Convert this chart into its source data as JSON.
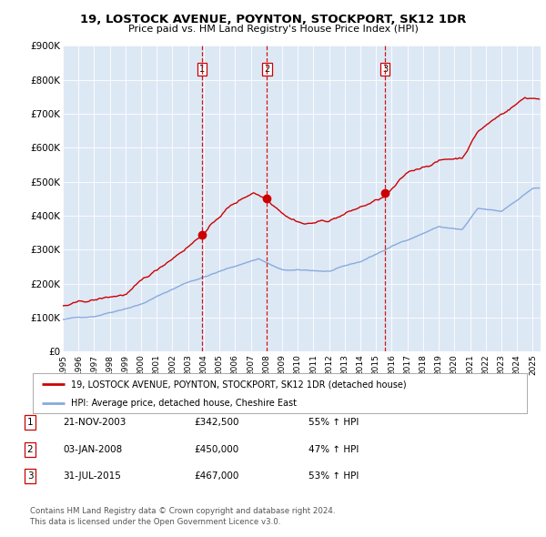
{
  "title": "19, LOSTOCK AVENUE, POYNTON, STOCKPORT, SK12 1DR",
  "subtitle": "Price paid vs. HM Land Registry's House Price Index (HPI)",
  "ylim": [
    0,
    900000
  ],
  "yticks": [
    0,
    100000,
    200000,
    300000,
    400000,
    500000,
    600000,
    700000,
    800000,
    900000
  ],
  "ytick_labels": [
    "£0",
    "£100K",
    "£200K",
    "£300K",
    "£400K",
    "£500K",
    "£600K",
    "£700K",
    "£800K",
    "£900K"
  ],
  "line1_color": "#cc0000",
  "line2_color": "#88aadd",
  "vline_color": "#cc0000",
  "transactions": [
    {
      "date_num": 2003.9,
      "price": 342500,
      "label": "1"
    },
    {
      "date_num": 2008.04,
      "price": 450000,
      "label": "2"
    },
    {
      "date_num": 2015.58,
      "price": 467000,
      "label": "3"
    }
  ],
  "legend_line1": "19, LOSTOCK AVENUE, POYNTON, STOCKPORT, SK12 1DR (detached house)",
  "legend_line2": "HPI: Average price, detached house, Cheshire East",
  "table_rows": [
    {
      "num": "1",
      "date": "21-NOV-2003",
      "price": "£342,500",
      "change": "55% ↑ HPI"
    },
    {
      "num": "2",
      "date": "03-JAN-2008",
      "price": "£450,000",
      "change": "47% ↑ HPI"
    },
    {
      "num": "3",
      "date": "31-JUL-2015",
      "price": "£467,000",
      "change": "53% ↑ HPI"
    }
  ],
  "footnote1": "Contains HM Land Registry data © Crown copyright and database right 2024.",
  "footnote2": "This data is licensed under the Open Government Licence v3.0.",
  "background_color": "#ffffff",
  "plot_bg_color": "#dde8f5"
}
